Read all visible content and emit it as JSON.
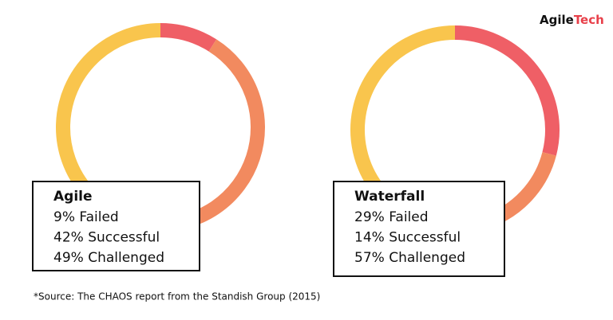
{
  "logo": {
    "first": "Agile",
    "second": "Tech"
  },
  "source": "*Source: The CHAOS report from the Standish Group (2015)",
  "chart_data": [
    {
      "type": "donut",
      "title": "Agile",
      "categories": [
        "Failed",
        "Successful",
        "Challenged"
      ],
      "values": [
        9,
        42,
        49
      ],
      "value_labels": [
        "9%",
        "42%",
        "49%"
      ],
      "colors": [
        "#ef5f66",
        "#f28a5f",
        "#f9c54d"
      ]
    },
    {
      "type": "donut",
      "title": "Waterfall",
      "categories": [
        "Failed",
        "Successful",
        "Challenged"
      ],
      "values": [
        29,
        14,
        57
      ],
      "value_labels": [
        "29%",
        "14%",
        "57%"
      ],
      "colors": [
        "#ef5f66",
        "#f28a5f",
        "#f9c54d"
      ]
    }
  ]
}
